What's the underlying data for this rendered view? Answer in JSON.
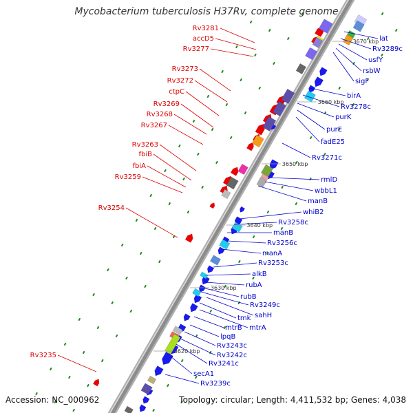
{
  "title": "Mycobacterium tuberculosis H37Rv, complete genome",
  "footer": {
    "accession_label": "Accession:",
    "accession": "NC_000962",
    "topology_label": "Topology:",
    "topology": "circular",
    "length_label": "Length:",
    "length": "4,411,532 bp",
    "genes_label": "Genes:",
    "genes": "4,038"
  },
  "colors": {
    "left_labels": "#dd0000",
    "right_labels": "#0000cc",
    "forward_strand": "#ee0000",
    "reverse_strand": "#1a1aee",
    "backbone": "#8c8c8c",
    "orf_dash": "#1a8a1a"
  },
  "kbp_ticks": [
    {
      "label": "3670 kbp"
    },
    {
      "label": "3660 kbp"
    },
    {
      "label": "3650 kbp"
    },
    {
      "label": "3640 kbp"
    },
    {
      "label": "3630 kbp"
    },
    {
      "label": "3620 kbp"
    }
  ],
  "left_labels": [
    {
      "text": "Rv3281"
    },
    {
      "text": "accD5"
    },
    {
      "text": "Rv3277"
    },
    {
      "text": "Rv3273"
    },
    {
      "text": "Rv3272"
    },
    {
      "text": "ctpC"
    },
    {
      "text": "Rv3269"
    },
    {
      "text": "Rv3268"
    },
    {
      "text": "Rv3267"
    },
    {
      "text": "Rv3263"
    },
    {
      "text": "fbiB"
    },
    {
      "text": "fbiA"
    },
    {
      "text": "Rv3259"
    },
    {
      "text": "Rv3254"
    },
    {
      "text": "Rv3235"
    }
  ],
  "right_labels": [
    {
      "text": "lat"
    },
    {
      "text": "Rv3289c"
    },
    {
      "text": "usfY"
    },
    {
      "text": "rsbW"
    },
    {
      "text": "sigF"
    },
    {
      "text": "birA"
    },
    {
      "text": "Rv3278c"
    },
    {
      "text": "purK"
    },
    {
      "text": "purE"
    },
    {
      "text": "fadE25"
    },
    {
      "text": "Rv3271c"
    },
    {
      "text": "rmlD"
    },
    {
      "text": "wbbL1"
    },
    {
      "text": "manB"
    },
    {
      "text": "whiB2"
    },
    {
      "text": "Rv3258c"
    },
    {
      "text": "manB"
    },
    {
      "text": "Rv3256c"
    },
    {
      "text": "manA"
    },
    {
      "text": "Rv3253c"
    },
    {
      "text": "alkB"
    },
    {
      "text": "rubA"
    },
    {
      "text": "rubB"
    },
    {
      "text": "Rv3249c"
    },
    {
      "text": "sahH"
    },
    {
      "text": "tmk"
    },
    {
      "text": "mtrA"
    },
    {
      "text": "mtrB"
    },
    {
      "text": "lpqB"
    },
    {
      "text": "Rv3243c"
    },
    {
      "text": "Rv3242c"
    },
    {
      "text": "Rv3241c"
    },
    {
      "text": "secA1"
    },
    {
      "text": "Rv3239c"
    }
  ]
}
